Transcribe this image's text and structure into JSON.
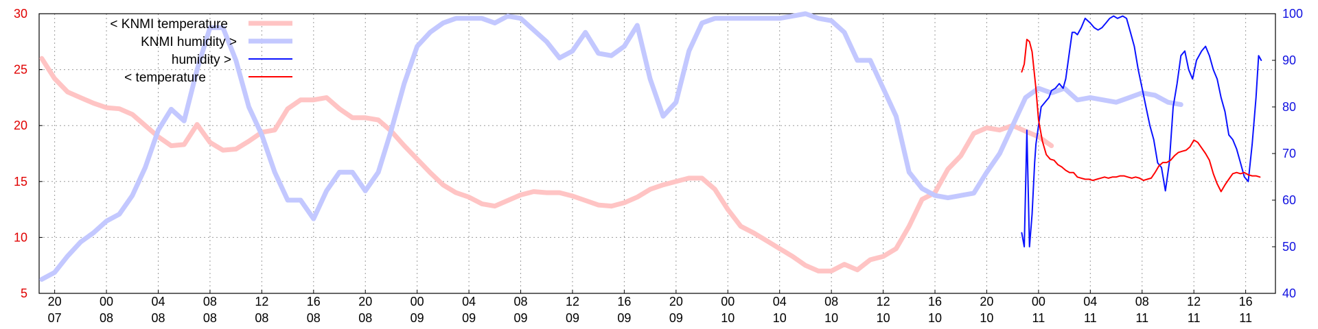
{
  "chart_data": {
    "type": "line",
    "grid": true,
    "legend_position": "top-left",
    "colors": {
      "knmi_temperature": "#ffc4c4",
      "knmi_humidity": "#c3c8ff",
      "humidity": "#0a12ff",
      "temperature": "#ff0000",
      "left_axis": "#e00000",
      "right_axis": "#1010e0"
    },
    "y_left": {
      "range": [
        5,
        30
      ],
      "ticks": [
        "5",
        "10",
        "15",
        "20",
        "25",
        "30"
      ]
    },
    "y_right": {
      "range": [
        40,
        100
      ],
      "ticks": [
        "40",
        "50",
        "60",
        "70",
        "80",
        "90",
        "100"
      ]
    },
    "x_range_hours": [
      -24,
      247
    ],
    "x_ticks": [
      {
        "hour": 0,
        "top": "20",
        "bottom": "07"
      },
      {
        "hour": 4,
        "top": "00",
        "bottom": "08"
      },
      {
        "hour": 8,
        "top": "04",
        "bottom": "08"
      },
      {
        "hour": 12,
        "top": "08",
        "bottom": "08"
      },
      {
        "hour": 16,
        "top": "12",
        "bottom": "08"
      },
      {
        "hour": 20,
        "top": "16",
        "bottom": "08"
      },
      {
        "hour": 24,
        "top": "20",
        "bottom": "08"
      },
      {
        "hour": 28,
        "top": "00",
        "bottom": "09"
      },
      {
        "hour": 32,
        "top": "04",
        "bottom": "09"
      },
      {
        "hour": 36,
        "top": "08",
        "bottom": "09"
      },
      {
        "hour": 40,
        "top": "12",
        "bottom": "09"
      },
      {
        "hour": 44,
        "top": "16",
        "bottom": "09"
      },
      {
        "hour": 48,
        "top": "20",
        "bottom": "09"
      },
      {
        "hour": 52,
        "top": "00",
        "bottom": "10"
      },
      {
        "hour": 56,
        "top": "04",
        "bottom": "10"
      },
      {
        "hour": 60,
        "top": "08",
        "bottom": "10"
      },
      {
        "hour": 64,
        "top": "12",
        "bottom": "10"
      },
      {
        "hour": 68,
        "top": "16",
        "bottom": "10"
      },
      {
        "hour": 72,
        "top": "20",
        "bottom": "10"
      },
      {
        "hour": 76,
        "top": "00",
        "bottom": "11"
      },
      {
        "hour": 80,
        "top": "04",
        "bottom": "11"
      },
      {
        "hour": 84,
        "top": "08",
        "bottom": "11"
      },
      {
        "hour": 88,
        "top": "12",
        "bottom": "11"
      },
      {
        "hour": 92,
        "top": "16",
        "bottom": "11"
      }
    ],
    "series": [
      {
        "name": "< KNMI temperature",
        "axis": "left",
        "x": [
          -1,
          0,
          1,
          2,
          3,
          4,
          5,
          6,
          7,
          8,
          9,
          10,
          11,
          12,
          13,
          14,
          15,
          16,
          17,
          18,
          19,
          20,
          21,
          22,
          23,
          24,
          25,
          26,
          27,
          28,
          29,
          30,
          31,
          32,
          33,
          34,
          35,
          36,
          37,
          38,
          39,
          40,
          41,
          42,
          43,
          44,
          45,
          46,
          47,
          48,
          49,
          50,
          51,
          52,
          53,
          54,
          55,
          56,
          57,
          58,
          59,
          60,
          61,
          62,
          63,
          64,
          65,
          66,
          67,
          68,
          69,
          70,
          71,
          72,
          73,
          74,
          75,
          76,
          77
        ],
        "y": [
          26,
          24.2,
          23,
          22.5,
          22,
          21.6,
          21.5,
          21,
          20,
          19,
          18.2,
          18.3,
          20.1,
          18.5,
          17.8,
          17.9,
          18.6,
          19.4,
          19.6,
          21.5,
          22.3,
          22.3,
          22.5,
          21.5,
          20.7,
          20.7,
          20.5,
          19.5,
          18.2,
          17,
          15.8,
          14.7,
          14,
          13.6,
          13,
          12.8,
          13.3,
          13.8,
          14.1,
          14,
          14,
          13.7,
          13.3,
          12.9,
          12.8,
          13.1,
          13.6,
          14.3,
          14.7,
          15,
          15.3,
          15.3,
          14.3,
          12.5,
          11,
          10.4,
          9.7,
          9,
          8.3,
          7.5,
          7,
          7,
          7.6,
          7.1,
          8,
          8.3,
          9,
          11,
          13.4,
          14,
          16.1,
          17.3,
          19.3,
          19.8,
          19.6,
          20,
          19.5,
          19,
          18.2
        ]
      },
      {
        "name": "KNMI humidity >",
        "axis": "right",
        "x": [
          -1,
          0,
          1,
          2,
          3,
          4,
          5,
          6,
          7,
          8,
          9,
          10,
          11,
          12,
          13,
          14,
          15,
          16,
          17,
          18,
          19,
          20,
          21,
          22,
          23,
          24,
          25,
          26,
          27,
          28,
          29,
          30,
          31,
          32,
          33,
          34,
          35,
          36,
          37,
          38,
          39,
          40,
          41,
          42,
          43,
          44,
          45,
          46,
          47,
          48,
          49,
          50,
          51,
          52,
          53,
          54,
          55,
          56,
          57,
          58,
          59,
          60,
          61,
          62,
          63,
          64,
          65,
          66,
          67,
          68,
          69,
          70,
          71,
          72,
          73,
          74,
          75,
          76,
          77,
          78,
          79,
          80,
          81,
          82,
          83,
          84,
          85,
          86,
          87
        ],
        "y": [
          43,
          44.5,
          48,
          51,
          53,
          55.5,
          57,
          61,
          67,
          75,
          79.5,
          77,
          88,
          97,
          97,
          90,
          80,
          74,
          66,
          60,
          60,
          56,
          62,
          66,
          66,
          62,
          66,
          75,
          85,
          93,
          96,
          98,
          99,
          99,
          99,
          98,
          99.5,
          99,
          96.5,
          94,
          90.5,
          92,
          96,
          91.5,
          91,
          93,
          97.5,
          86,
          78,
          81,
          92,
          98,
          99,
          99,
          99,
          99,
          99,
          99,
          99.5,
          100,
          99,
          98.5,
          96,
          90,
          90,
          84,
          78,
          66,
          62.5,
          61,
          60.5,
          61,
          61.5,
          66,
          70,
          76,
          82,
          84,
          83,
          84,
          81.5,
          82,
          81.5,
          81,
          82,
          83,
          82.5,
          81,
          80.5
        ]
      },
      {
        "name": "humidity >",
        "axis": "right",
        "x": [
          74.7,
          74.9,
          75.1,
          75.3,
          75.5,
          75.7,
          75.8,
          76,
          76.2,
          76.5,
          76.8,
          77,
          77.3,
          77.6,
          77.9,
          78.1,
          78.4,
          78.6,
          78.8,
          79,
          79.3,
          79.6,
          80,
          80.3,
          80.6,
          80.9,
          81.2,
          81.5,
          81.8,
          82.1,
          82.5,
          82.8,
          83.1,
          83.4,
          83.7,
          84,
          84.3,
          84.6,
          84.9,
          85.2,
          85.5,
          85.8,
          86.1,
          86.4,
          86.7,
          87,
          87.3,
          87.6,
          87.9,
          88.2,
          88.6,
          88.9,
          89.2,
          89.5,
          89.8,
          90.1,
          90.4,
          90.7,
          91,
          91.3,
          91.6,
          91.9,
          92.2,
          92.5,
          92.8,
          93,
          93.2
        ],
        "y": [
          53,
          50,
          75,
          50,
          57,
          68,
          72,
          76,
          80,
          81,
          82,
          83.5,
          84,
          85,
          84,
          86,
          92,
          96,
          96,
          95.5,
          97,
          99,
          98,
          97,
          96.5,
          97,
          98,
          99,
          99.5,
          99,
          99.5,
          99,
          96,
          93,
          88,
          84,
          80,
          76,
          73,
          68,
          67,
          62,
          68,
          80,
          85,
          91,
          92,
          88,
          86,
          90,
          92,
          93,
          91,
          88,
          86,
          82,
          79,
          74,
          73,
          71,
          68,
          65,
          64,
          72,
          82,
          91,
          90
        ]
      },
      {
        "name": "< temperature",
        "axis": "left",
        "x": [
          74.7,
          74.9,
          75.1,
          75.3,
          75.5,
          75.8,
          76,
          76.3,
          76.6,
          76.9,
          77.2,
          77.5,
          77.8,
          78.1,
          78.4,
          78.7,
          79,
          79.3,
          79.6,
          79.9,
          80.2,
          80.5,
          80.8,
          81.1,
          81.4,
          81.7,
          82,
          82.3,
          82.6,
          82.9,
          83.2,
          83.5,
          83.8,
          84.1,
          84.4,
          84.7,
          85,
          85.3,
          85.6,
          85.9,
          86.2,
          86.5,
          86.8,
          87.1,
          87.4,
          87.7,
          88,
          88.3,
          88.6,
          88.9,
          89.2,
          89.5,
          89.8,
          90.1,
          90.4,
          90.7,
          91,
          91.3,
          91.6,
          91.9,
          92.2,
          92.5,
          92.8,
          93.1
        ],
        "y": [
          24.8,
          25.5,
          27.7,
          27.5,
          26.6,
          23.3,
          20.5,
          18.6,
          17.4,
          17,
          16.9,
          16.5,
          16.3,
          16,
          15.8,
          15.8,
          15.4,
          15.3,
          15.2,
          15.2,
          15.1,
          15.2,
          15.3,
          15.4,
          15.3,
          15.4,
          15.4,
          15.5,
          15.5,
          15.4,
          15.3,
          15.4,
          15.3,
          15.1,
          15.2,
          15.3,
          15.8,
          16.4,
          16.7,
          16.7,
          16.9,
          17.3,
          17.6,
          17.7,
          17.8,
          18.1,
          18.7,
          18.5,
          18,
          17.5,
          16.9,
          15.7,
          14.8,
          14.1,
          14.7,
          15.2,
          15.7,
          15.8,
          15.7,
          15.8,
          15.6,
          15.5,
          15.5,
          15.4
        ]
      }
    ]
  }
}
